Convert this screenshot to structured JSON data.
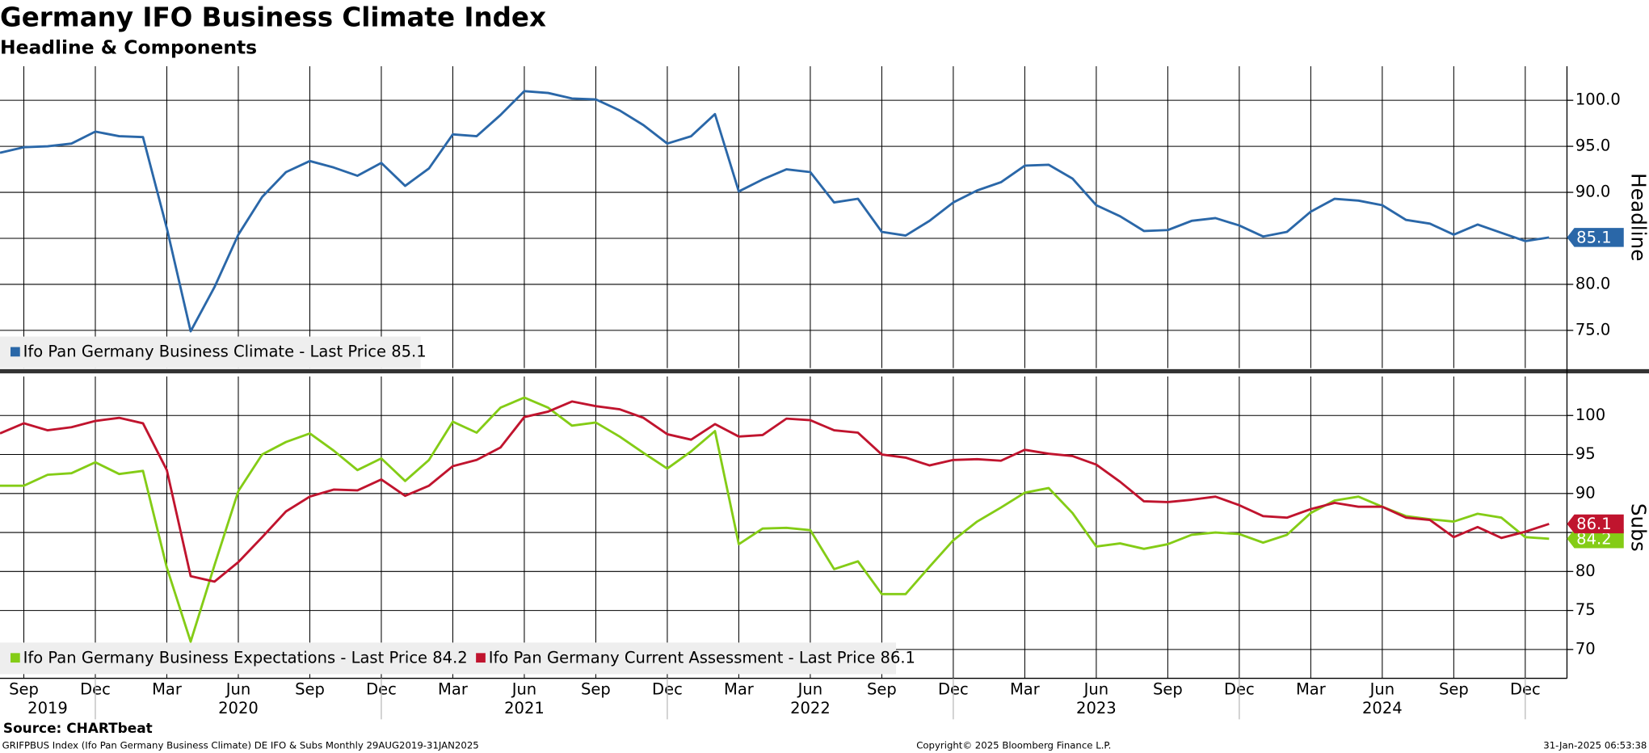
{
  "title": "Germany IFO Business Climate Index",
  "subtitle": "Headline & Components",
  "source": "Source: CHARTbeat",
  "footer": {
    "left": "GRIFPBUS Index (Ifo Pan Germany Business Climate) DE IFO & Subs  Monthly 29AUG2019-31JAN2025",
    "center": "Copyright© 2025 Bloomberg Finance L.P.",
    "right": "31-Jan-2025 06:53:38"
  },
  "chart_data": [
    {
      "type": "line",
      "y_label": "Headline",
      "grid": true,
      "ylim": [
        70.9,
        103.7
      ],
      "yticks": [
        {
          "value": 75,
          "label": "75.0"
        },
        {
          "value": 80,
          "label": "80.0"
        },
        {
          "value": 85,
          "label": "85.0"
        },
        {
          "value": 90,
          "label": "90.0"
        },
        {
          "value": 95,
          "label": "95.0"
        },
        {
          "value": 100,
          "label": "100.0"
        }
      ],
      "series": [
        {
          "name": "Ifo Pan Germany Business Climate - Last Price 85.1",
          "color": "#2a67a8",
          "values": [
            94.3,
            94.9,
            95.0,
            95.3,
            96.6,
            96.1,
            96.0,
            86.1,
            74.9,
            79.7,
            85.4,
            89.5,
            92.2,
            93.4,
            92.7,
            91.8,
            93.2,
            90.7,
            92.6,
            96.3,
            96.1,
            98.4,
            101.0,
            100.8,
            100.2,
            100.1,
            98.9,
            97.3,
            95.3,
            96.1,
            98.5,
            90.1,
            91.4,
            92.5,
            92.2,
            88.9,
            89.3,
            85.7,
            85.3,
            86.9,
            88.9,
            90.2,
            91.1,
            92.9,
            93.0,
            91.5,
            88.6,
            87.4,
            85.8,
            85.9,
            86.9,
            87.2,
            86.4,
            85.2,
            85.7,
            87.9,
            89.3,
            89.1,
            88.6,
            87.0,
            86.6,
            85.4,
            86.5,
            85.6,
            84.7,
            85.1
          ]
        }
      ]
    },
    {
      "type": "line",
      "y_label": "Subs",
      "grid": true,
      "ylim": [
        66.3,
        105
      ],
      "yticks": [
        70,
        75,
        80,
        85,
        90,
        95,
        100
      ],
      "x": [
        "2019-08",
        "2019-09",
        "2019-10",
        "2019-11",
        "2019-12",
        "2020-01",
        "2020-02",
        "2020-03",
        "2020-04",
        "2020-05",
        "2020-06",
        "2020-07",
        "2020-08",
        "2020-09",
        "2020-10",
        "2020-11",
        "2020-12",
        "2021-01",
        "2021-02",
        "2021-03",
        "2021-04",
        "2021-05",
        "2021-06",
        "2021-07",
        "2021-08",
        "2021-09",
        "2021-10",
        "2021-11",
        "2021-12",
        "2022-01",
        "2022-02",
        "2022-03",
        "2022-04",
        "2022-05",
        "2022-06",
        "2022-07",
        "2022-08",
        "2022-09",
        "2022-10",
        "2022-11",
        "2022-12",
        "2023-01",
        "2023-02",
        "2023-03",
        "2023-04",
        "2023-05",
        "2023-06",
        "2023-07",
        "2023-08",
        "2023-09",
        "2023-10",
        "2023-11",
        "2023-12",
        "2024-01",
        "2024-02",
        "2024-03",
        "2024-04",
        "2024-05",
        "2024-06",
        "2024-07",
        "2024-08",
        "2024-09",
        "2024-10",
        "2024-11",
        "2024-12",
        "2025-01"
      ],
      "xticks": [
        {
          "value": "2019-09",
          "label": "Sep"
        },
        {
          "value": "2019-12",
          "label": "Dec"
        },
        {
          "value": "2020-03",
          "label": "Mar"
        },
        {
          "value": "2020-06",
          "label": "Jun"
        },
        {
          "value": "2020-09",
          "label": "Sep"
        },
        {
          "value": "2020-12",
          "label": "Dec"
        },
        {
          "value": "2021-03",
          "label": "Mar"
        },
        {
          "value": "2021-06",
          "label": "Jun"
        },
        {
          "value": "2021-09",
          "label": "Sep"
        },
        {
          "value": "2021-12",
          "label": "Dec"
        },
        {
          "value": "2022-03",
          "label": "Mar"
        },
        {
          "value": "2022-06",
          "label": "Jun"
        },
        {
          "value": "2022-09",
          "label": "Sep"
        },
        {
          "value": "2022-12",
          "label": "Dec"
        },
        {
          "value": "2023-03",
          "label": "Mar"
        },
        {
          "value": "2023-06",
          "label": "Jun"
        },
        {
          "value": "2023-09",
          "label": "Sep"
        },
        {
          "value": "2023-12",
          "label": "Dec"
        },
        {
          "value": "2024-03",
          "label": "Mar"
        },
        {
          "value": "2024-06",
          "label": "Jun"
        },
        {
          "value": "2024-09",
          "label": "Sep"
        },
        {
          "value": "2024-12",
          "label": "Dec"
        }
      ],
      "year_ticks": [
        {
          "value": "2019-10",
          "label": "2019"
        },
        {
          "value": "2020-06",
          "label": "2020"
        },
        {
          "value": "2021-06",
          "label": "2021"
        },
        {
          "value": "2022-06",
          "label": "2022"
        },
        {
          "value": "2023-06",
          "label": "2023"
        },
        {
          "value": "2024-06",
          "label": "2024"
        }
      ],
      "series": [
        {
          "name": "Ifo Pan Germany Business Expectations - Last Price 84.2",
          "color": "#84cc16",
          "values": [
            91.0,
            91.0,
            92.4,
            92.6,
            94.0,
            92.5,
            92.9,
            80.5,
            71.0,
            80.8,
            90.3,
            95.0,
            96.6,
            97.7,
            95.5,
            93.0,
            94.5,
            91.6,
            94.3,
            99.2,
            97.8,
            101.0,
            102.3,
            101.0,
            98.7,
            99.1,
            97.3,
            95.2,
            93.2,
            95.4,
            98.0,
            83.5,
            85.5,
            85.6,
            85.3,
            80.3,
            81.3,
            77.1,
            77.1,
            80.6,
            84.0,
            86.4,
            88.2,
            90.1,
            90.7,
            87.5,
            83.2,
            83.6,
            82.9,
            83.5,
            84.7,
            85.0,
            84.8,
            83.7,
            84.7,
            87.5,
            89.1,
            89.6,
            88.3,
            87.1,
            86.7,
            86.4,
            87.4,
            86.9,
            84.4,
            84.2
          ]
        },
        {
          "name": "Ifo Pan Germany Current Assessment - Last Price 86.1",
          "color": "#c0142e",
          "values": [
            97.7,
            99.0,
            98.1,
            98.5,
            99.3,
            99.7,
            99.0,
            93.0,
            79.4,
            78.7,
            81.2,
            84.4,
            87.7,
            89.6,
            90.5,
            90.4,
            91.8,
            89.7,
            91.0,
            93.5,
            94.3,
            95.9,
            99.8,
            100.5,
            101.8,
            101.2,
            100.8,
            99.7,
            97.6,
            96.9,
            98.9,
            97.3,
            97.5,
            99.6,
            99.4,
            98.1,
            97.8,
            95.0,
            94.6,
            93.6,
            94.3,
            94.4,
            94.2,
            95.6,
            95.1,
            94.8,
            93.7,
            91.5,
            89.0,
            88.9,
            89.2,
            89.6,
            88.5,
            87.1,
            86.9,
            88.0,
            88.8,
            88.3,
            88.3,
            86.9,
            86.6,
            84.4,
            85.7,
            84.3,
            85.1,
            86.1
          ]
        }
      ]
    }
  ]
}
